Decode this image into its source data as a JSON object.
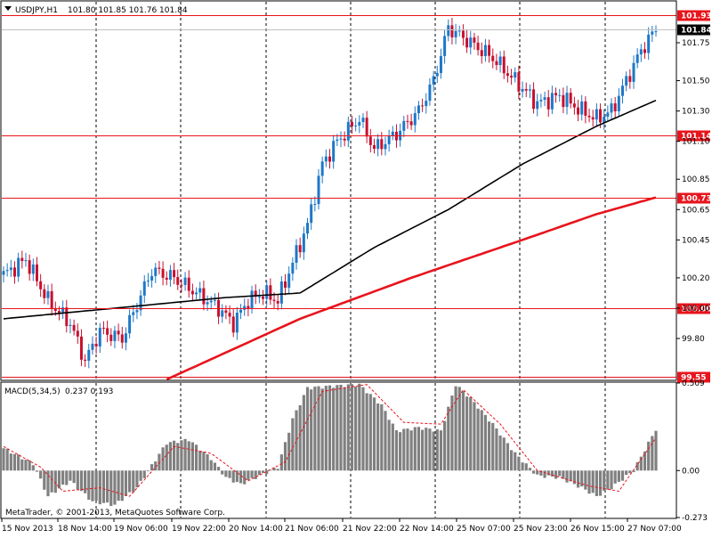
{
  "header": {
    "symbol": "USDJPY,H1",
    "ohlc": "101.80 101.85 101.76 101.84",
    "macd_label": "MACD(5,34,5)",
    "macd_values": "0.237 0.193",
    "copyright": "MetaTrader, © 2001-2013, MetaQuotes Software Corp."
  },
  "colors": {
    "background": "#ffffff",
    "bull_candle": "#1e78c8",
    "bear_candle": "#c8102e",
    "ma_fast": "#000000",
    "ma_slow": "#e8141c",
    "level_line": "#e8141c",
    "level_label_bg": "#e8141c",
    "current_price_bg": "#000000",
    "macd_hist": "#808080",
    "macd_signal": "#e8141c",
    "grid": "#000000"
  },
  "chart_data": [
    {
      "type": "candlestick",
      "title": "USDJPY,H1",
      "y_ticks": [
        "101.75",
        "101.50",
        "101.30",
        "101.10",
        "100.85",
        "100.65",
        "100.45",
        "100.20",
        "100.00",
        "99.80"
      ],
      "ylim": [
        99.53,
        102.02
      ],
      "x_ticks": [
        "15 Nov 2013",
        "18 Nov 14:00",
        "19 Nov 06:00",
        "19 Nov 22:00",
        "20 Nov 14:00",
        "21 Nov 06:00",
        "21 Nov 22:00",
        "22 Nov 14:00",
        "25 Nov 07:00",
        "25 Nov 23:00",
        "26 Nov 15:00",
        "27 Nov 07:00"
      ],
      "levels": [
        {
          "label": "101.93",
          "value": 101.93
        },
        {
          "label": "101.14",
          "value": 101.14
        },
        {
          "label": "100.73",
          "value": 100.73
        },
        {
          "label": "100.00",
          "value": 100.0
        },
        {
          "label": "99.55",
          "value": 99.55
        }
      ],
      "current_price": {
        "label": "101.84",
        "value": 101.84
      },
      "close_anchors": [
        [
          0,
          100.22
        ],
        [
          6,
          100.32
        ],
        [
          12,
          100.05
        ],
        [
          18,
          99.9
        ],
        [
          22,
          99.65
        ],
        [
          26,
          99.85
        ],
        [
          32,
          99.8
        ],
        [
          40,
          100.25
        ],
        [
          46,
          100.2
        ],
        [
          52,
          100.1
        ],
        [
          58,
          100.0
        ],
        [
          62,
          99.9
        ],
        [
          66,
          100.05
        ],
        [
          70,
          100.1
        ],
        [
          74,
          100.05
        ],
        [
          78,
          100.3
        ],
        [
          82,
          100.55
        ],
        [
          86,
          100.95
        ],
        [
          90,
          101.1
        ],
        [
          96,
          101.25
        ],
        [
          100,
          101.05
        ],
        [
          106,
          101.15
        ],
        [
          112,
          101.3
        ],
        [
          116,
          101.5
        ],
        [
          120,
          101.85
        ],
        [
          126,
          101.75
        ],
        [
          132,
          101.65
        ],
        [
          138,
          101.5
        ],
        [
          144,
          101.35
        ],
        [
          150,
          101.4
        ],
        [
          156,
          101.3
        ],
        [
          160,
          101.25
        ],
        [
          164,
          101.3
        ],
        [
          168,
          101.5
        ],
        [
          172,
          101.7
        ],
        [
          176,
          101.84
        ]
      ],
      "ma_fast": [
        [
          0,
          99.93
        ],
        [
          60,
          100.07
        ],
        [
          80,
          100.1
        ],
        [
          100,
          100.4
        ],
        [
          120,
          100.65
        ],
        [
          140,
          100.95
        ],
        [
          160,
          101.2
        ],
        [
          176,
          101.37
        ]
      ],
      "ma_slow": [
        [
          44,
          99.53
        ],
        [
          80,
          99.93
        ],
        [
          110,
          100.2
        ],
        [
          140,
          100.45
        ],
        [
          160,
          100.62
        ],
        [
          176,
          100.73
        ]
      ]
    },
    {
      "type": "bar",
      "title": "MACD(5,34,5)",
      "y_ticks": [
        "0.509",
        "0.00",
        "-0.273"
      ],
      "ylim": [
        -0.273,
        0.509
      ],
      "hist_anchors": [
        [
          0,
          0.13
        ],
        [
          8,
          0.04
        ],
        [
          12,
          -0.15
        ],
        [
          18,
          -0.06
        ],
        [
          24,
          -0.18
        ],
        [
          30,
          -0.2
        ],
        [
          36,
          -0.1
        ],
        [
          44,
          0.16
        ],
        [
          50,
          0.18
        ],
        [
          56,
          0.07
        ],
        [
          60,
          -0.04
        ],
        [
          64,
          -0.08
        ],
        [
          70,
          -0.02
        ],
        [
          74,
          0.02
        ],
        [
          78,
          0.3
        ],
        [
          82,
          0.48
        ],
        [
          88,
          0.49
        ],
        [
          96,
          0.5
        ],
        [
          102,
          0.38
        ],
        [
          106,
          0.23
        ],
        [
          112,
          0.25
        ],
        [
          118,
          0.23
        ],
        [
          122,
          0.5
        ],
        [
          126,
          0.42
        ],
        [
          132,
          0.27
        ],
        [
          138,
          0.1
        ],
        [
          144,
          -0.03
        ],
        [
          150,
          -0.04
        ],
        [
          156,
          -0.1
        ],
        [
          160,
          -0.15
        ],
        [
          164,
          -0.1
        ],
        [
          170,
          0.0
        ],
        [
          176,
          0.24
        ]
      ],
      "signal_anchors": [
        [
          0,
          0.14
        ],
        [
          10,
          0.02
        ],
        [
          16,
          -0.12
        ],
        [
          26,
          -0.1
        ],
        [
          34,
          -0.15
        ],
        [
          46,
          0.14
        ],
        [
          56,
          0.1
        ],
        [
          66,
          -0.06
        ],
        [
          76,
          0.05
        ],
        [
          86,
          0.46
        ],
        [
          98,
          0.5
        ],
        [
          108,
          0.28
        ],
        [
          118,
          0.27
        ],
        [
          124,
          0.47
        ],
        [
          134,
          0.27
        ],
        [
          144,
          0.0
        ],
        [
          158,
          -0.09
        ],
        [
          166,
          -0.12
        ],
        [
          176,
          0.19
        ]
      ]
    }
  ]
}
